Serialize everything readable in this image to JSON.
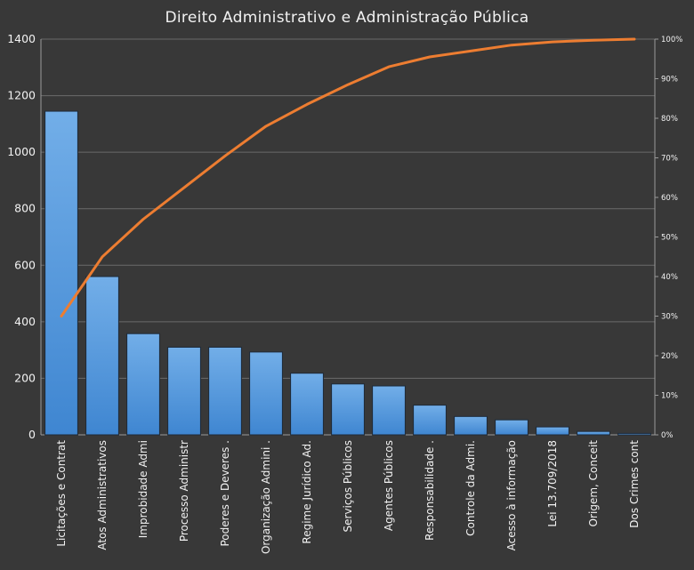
{
  "chart_data": {
    "type": "bar",
    "title": "Direito Administrativo e Administração Pública",
    "categories": [
      "Licitações e Contrat",
      "Atos Administrativos",
      "Improbidade Admi",
      "Processo Administr",
      "Poderes e Deveres .",
      "Organização Admini .",
      "Regime Jurídico Ad.",
      "Serviços Públicos",
      "Agentes Públicos",
      "Responsabilidade .",
      "Controle da Admi.",
      "Acesso à informação",
      "Lei 13.709/2018",
      "Origem, Conceit",
      "Dos Crimes cont"
    ],
    "series": [
      {
        "type": "bar",
        "color": "#4a8fd8",
        "values": [
          1145,
          560,
          358,
          310,
          310,
          293,
          218,
          180,
          173,
          105,
          65,
          53,
          28,
          12,
          5
        ]
      },
      {
        "type": "line",
        "axis": "right",
        "color": "#ed7d31",
        "values": [
          0.3,
          0.45,
          0.545,
          0.625,
          0.705,
          0.78,
          0.835,
          0.885,
          0.93,
          0.955,
          0.97,
          0.985,
          0.993,
          0.997,
          1.0
        ]
      }
    ],
    "ylim": [
      0,
      1400
    ],
    "yticks": [
      "0",
      "200",
      "400",
      "600",
      "800",
      "1000",
      "1200",
      "1400"
    ],
    "y2lim": [
      0,
      1
    ],
    "y2ticks": [
      "0%",
      "10%",
      "20%",
      "30%",
      "40%",
      "50%",
      "60%",
      "70%",
      "80%",
      "90%",
      "100%"
    ],
    "grid": true,
    "legend": "none"
  }
}
